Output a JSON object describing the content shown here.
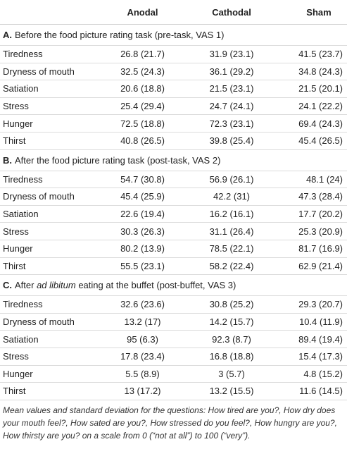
{
  "table": {
    "columns": [
      "Anodal",
      "Cathodal",
      "Sham"
    ],
    "sections": [
      {
        "label": "A.",
        "title": [
          "Before the food picture rating task (pre-task, VAS 1)"
        ],
        "rows": [
          {
            "name": "Tiredness",
            "values": [
              "26.8 (21.7)",
              "31.9 (23.1)",
              "41.5 (23.7)"
            ]
          },
          {
            "name": "Dryness of mouth",
            "values": [
              "32.5 (24.3)",
              "36.1 (29.2)",
              "34.8 (24.3)"
            ]
          },
          {
            "name": "Satiation",
            "values": [
              "20.6 (18.8)",
              "21.5 (23.1)",
              "21.5 (20.1)"
            ]
          },
          {
            "name": "Stress",
            "values": [
              "25.4 (29.4)",
              "24.7 (24.1)",
              "24.1 (22.2)"
            ]
          },
          {
            "name": "Hunger",
            "values": [
              "72.5 (18.8)",
              "72.3 (23.1)",
              "69.4 (24.3)"
            ]
          },
          {
            "name": "Thirst",
            "values": [
              "40.8 (26.5)",
              "39.8 (25.4)",
              "45.4 (26.5)"
            ]
          }
        ]
      },
      {
        "label": "B.",
        "title": [
          "After the food picture rating task (post-task, VAS 2)"
        ],
        "rows": [
          {
            "name": "Tiredness",
            "values": [
              "54.7 (30.8)",
              "56.9 (26.1)",
              "48.1 (24)"
            ]
          },
          {
            "name": "Dryness of mouth",
            "values": [
              "45.4 (25.9)",
              "42.2 (31)",
              "47.3 (28.4)"
            ]
          },
          {
            "name": "Satiation",
            "values": [
              "22.6 (19.4)",
              "16.2 (16.1)",
              "17.7 (20.2)"
            ]
          },
          {
            "name": "Stress",
            "values": [
              "30.3 (26.3)",
              "31.1 (26.4)",
              "25.3 (20.9)"
            ]
          },
          {
            "name": "Hunger",
            "values": [
              "80.2 (13.9)",
              "78.5 (22.1)",
              "81.7 (16.9)"
            ]
          },
          {
            "name": "Thirst",
            "values": [
              "55.5 (23.1)",
              "58.2 (22.4)",
              "62.9 (21.4)"
            ]
          }
        ]
      },
      {
        "label": "C.",
        "title": [
          "After ",
          "ad libitum",
          " eating at the buffet (post-buffet, VAS 3)"
        ],
        "rows": [
          {
            "name": "Tiredness",
            "values": [
              "32.6 (23.6)",
              "30.8 (25.2)",
              "29.3 (20.7)"
            ]
          },
          {
            "name": "Dryness of mouth",
            "values": [
              "13.2 (17)",
              "14.2 (15.7)",
              "10.4 (11.9)"
            ]
          },
          {
            "name": "Satiation",
            "values": [
              "95 (6.3)",
              "92.3 (8.7)",
              "89.4 (19.4)"
            ]
          },
          {
            "name": "Stress",
            "values": [
              "17.8 (23.4)",
              "16.8 (18.8)",
              "15.4 (17.3)"
            ]
          },
          {
            "name": "Hunger",
            "values": [
              "5.5 (8.9)",
              "3 (5.7)",
              "4.8 (15.2)"
            ]
          },
          {
            "name": "Thirst",
            "values": [
              "13 (17.2)",
              "13.2 (15.5)",
              "11.6 (14.5)"
            ]
          }
        ]
      }
    ],
    "footnote": "Mean values and standard deviation for the questions: How tired are you?, How dry does your mouth feel?, How sated are you?, How stressed do you feel?, How hungry are you?, How thirsty are you? on a scale from 0 (“not at all”) to 100 (“very”)."
  }
}
